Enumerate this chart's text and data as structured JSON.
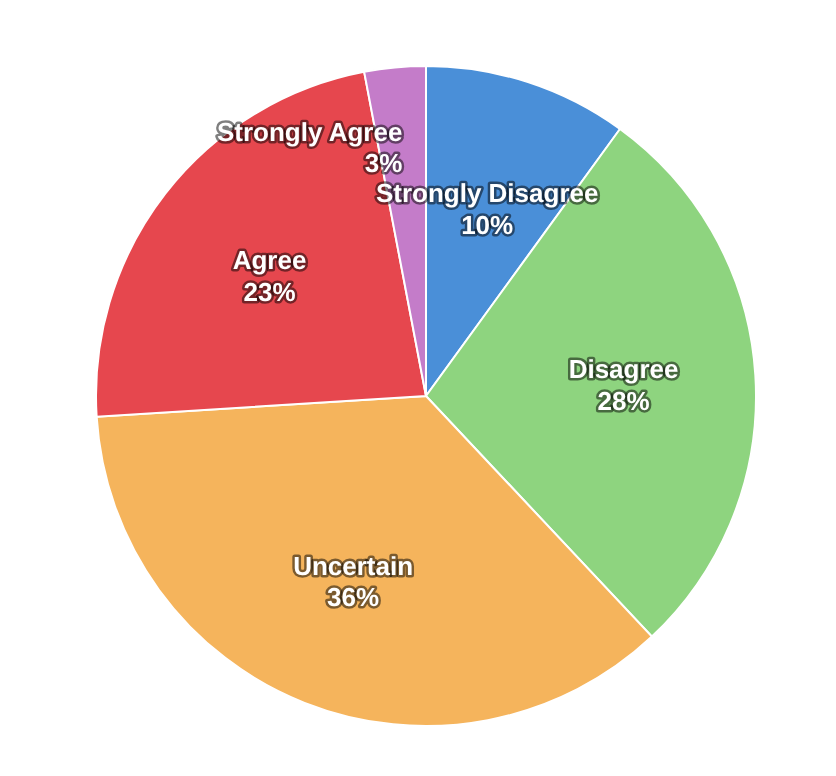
{
  "chart_data": {
    "type": "pie",
    "categories": [
      "Strongly Disagree",
      "Disagree",
      "Uncertain",
      "Agree",
      "Strongly Agree"
    ],
    "values": [
      10,
      28,
      36,
      23,
      3
    ],
    "value_labels": [
      "10%",
      "28%",
      "36%",
      "23%",
      "3%"
    ],
    "colors": [
      "#4a8fd8",
      "#8ed47f",
      "#f5b45c",
      "#e6474e",
      "#c47cc9"
    ],
    "legend": false
  }
}
